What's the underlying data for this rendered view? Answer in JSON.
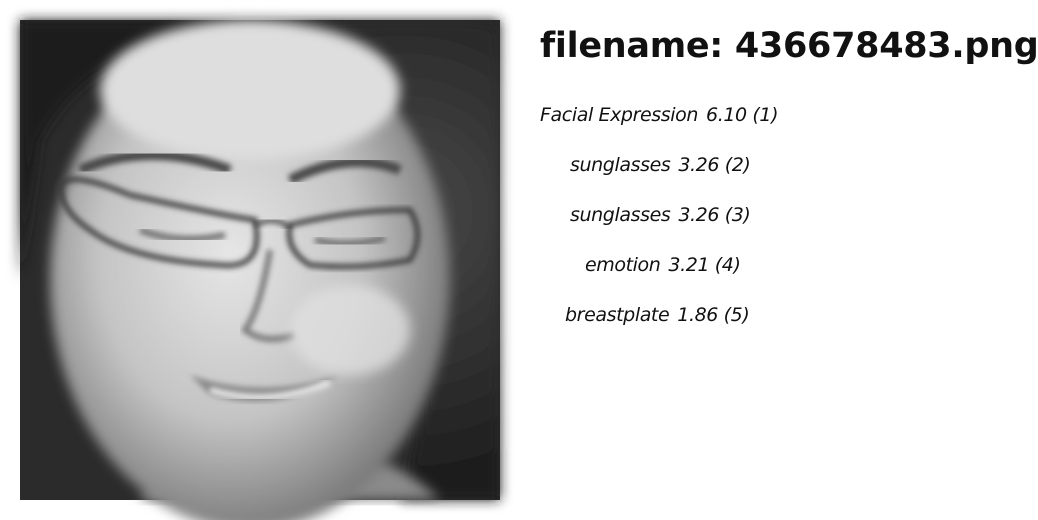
{
  "image": {
    "description_icon": "face-photo"
  },
  "header": {
    "filename_label": "filename: 436678483.png"
  },
  "results": [
    {
      "label": "Facial Expression",
      "score": "6.10",
      "rank": "(1)"
    },
    {
      "label": "sunglasses",
      "score": "3.26",
      "rank": "(2)"
    },
    {
      "label": "sunglasses",
      "score": "3.26",
      "rank": "(3)"
    },
    {
      "label": "emotion",
      "score": "3.21",
      "rank": "(4)"
    },
    {
      "label": "breastplate",
      "score": "1.86",
      "rank": "(5)"
    }
  ]
}
